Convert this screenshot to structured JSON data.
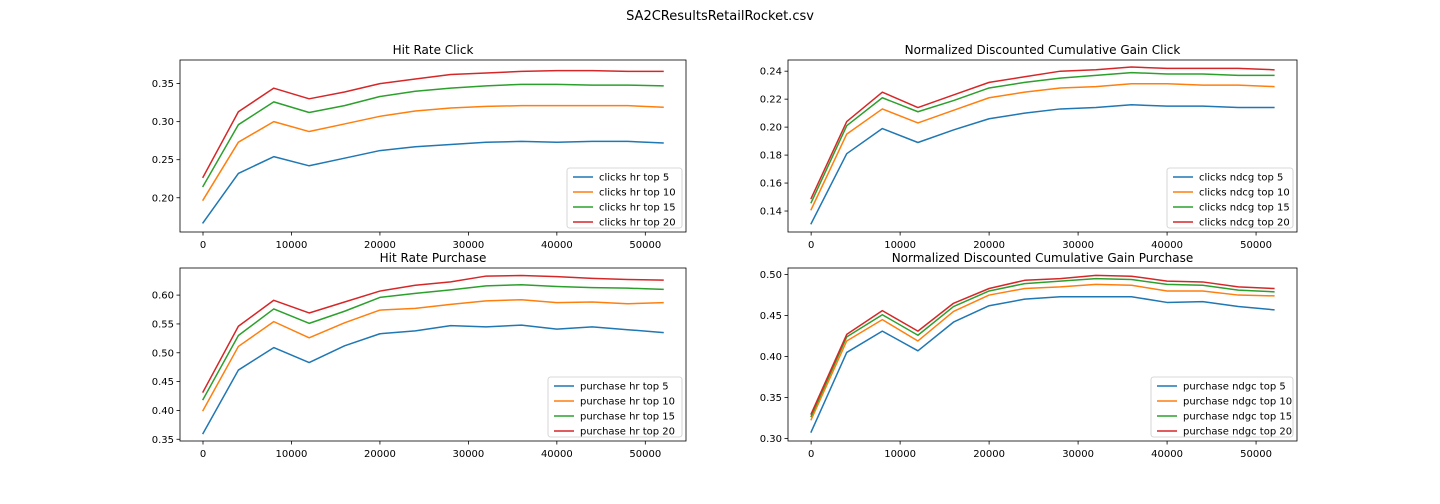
{
  "figure": {
    "suptitle": "SA2CResultsRetailRocket.csv"
  },
  "colors": [
    "#1f77b4",
    "#ff7f0e",
    "#2ca02c",
    "#d62728"
  ],
  "chart_data": [
    {
      "type": "line",
      "title": "Hit Rate Click",
      "xlabel": "",
      "ylabel": "",
      "x": [
        0,
        4000,
        8000,
        12000,
        16000,
        20000,
        24000,
        28000,
        32000,
        36000,
        40000,
        44000,
        48000,
        52000
      ],
      "xlim": [
        -2600,
        54600
      ],
      "ylim": [
        0.155,
        0.381
      ],
      "xticks": [
        0,
        10000,
        20000,
        30000,
        40000,
        50000
      ],
      "yticks": [
        0.2,
        0.25,
        0.3,
        0.35
      ],
      "ytick_labels": [
        "0.20",
        "0.25",
        "0.30",
        "0.35"
      ],
      "legend_position": "lower right",
      "series": [
        {
          "name": "clicks hr top 5",
          "values": [
            0.167,
            0.232,
            0.254,
            0.242,
            0.252,
            0.262,
            0.267,
            0.27,
            0.273,
            0.274,
            0.273,
            0.274,
            0.274,
            0.272
          ]
        },
        {
          "name": "clicks hr top 10",
          "values": [
            0.197,
            0.273,
            0.3,
            0.287,
            0.297,
            0.307,
            0.314,
            0.318,
            0.32,
            0.321,
            0.321,
            0.321,
            0.321,
            0.319
          ]
        },
        {
          "name": "clicks hr top 15",
          "values": [
            0.215,
            0.296,
            0.326,
            0.312,
            0.321,
            0.333,
            0.34,
            0.344,
            0.347,
            0.349,
            0.349,
            0.348,
            0.348,
            0.347
          ]
        },
        {
          "name": "clicks hr top 20",
          "values": [
            0.227,
            0.313,
            0.344,
            0.33,
            0.339,
            0.35,
            0.356,
            0.362,
            0.364,
            0.366,
            0.367,
            0.367,
            0.366,
            0.366
          ]
        }
      ]
    },
    {
      "type": "line",
      "title": "Normalized Discounted Cumulative Gain Click",
      "xlabel": "",
      "ylabel": "",
      "x": [
        0,
        4000,
        8000,
        12000,
        16000,
        20000,
        24000,
        28000,
        32000,
        36000,
        40000,
        44000,
        48000,
        52000
      ],
      "xlim": [
        -2600,
        54600
      ],
      "ylim": [
        0.125,
        0.248
      ],
      "xticks": [
        0,
        10000,
        20000,
        30000,
        40000,
        50000
      ],
      "yticks": [
        0.14,
        0.16,
        0.18,
        0.2,
        0.22,
        0.24
      ],
      "ytick_labels": [
        "0.14",
        "0.16",
        "0.18",
        "0.20",
        "0.22",
        "0.24"
      ],
      "legend_position": "lower right",
      "series": [
        {
          "name": "clicks ndcg top 5",
          "values": [
            0.131,
            0.181,
            0.199,
            0.189,
            0.198,
            0.206,
            0.21,
            0.213,
            0.214,
            0.216,
            0.215,
            0.215,
            0.214,
            0.214
          ]
        },
        {
          "name": "clicks ndcg top 10",
          "values": [
            0.141,
            0.195,
            0.213,
            0.203,
            0.212,
            0.221,
            0.225,
            0.228,
            0.229,
            0.231,
            0.231,
            0.23,
            0.23,
            0.229
          ]
        },
        {
          "name": "clicks ndcg top 15",
          "values": [
            0.146,
            0.201,
            0.221,
            0.211,
            0.219,
            0.228,
            0.232,
            0.235,
            0.237,
            0.239,
            0.238,
            0.238,
            0.237,
            0.237
          ]
        },
        {
          "name": "clicks ndcg top 20",
          "values": [
            0.149,
            0.204,
            0.225,
            0.214,
            0.223,
            0.232,
            0.236,
            0.24,
            0.241,
            0.243,
            0.242,
            0.242,
            0.242,
            0.241
          ]
        }
      ]
    },
    {
      "type": "line",
      "title": "Hit Rate Purchase",
      "xlabel": "",
      "ylabel": "",
      "x": [
        0,
        4000,
        8000,
        12000,
        16000,
        20000,
        24000,
        28000,
        32000,
        36000,
        40000,
        44000,
        48000,
        52000
      ],
      "xlim": [
        -2600,
        54600
      ],
      "ylim": [
        0.347,
        0.647
      ],
      "xticks": [
        0,
        10000,
        20000,
        30000,
        40000,
        50000
      ],
      "yticks": [
        0.35,
        0.4,
        0.45,
        0.5,
        0.55,
        0.6
      ],
      "ytick_labels": [
        "0.35",
        "0.40",
        "0.45",
        "0.50",
        "0.55",
        "0.60"
      ],
      "legend_position": "lower right",
      "series": [
        {
          "name": "purchase hr top 5",
          "values": [
            0.36,
            0.47,
            0.509,
            0.483,
            0.512,
            0.533,
            0.538,
            0.547,
            0.545,
            0.548,
            0.541,
            0.545,
            0.54,
            0.535
          ]
        },
        {
          "name": "purchase hr top 10",
          "values": [
            0.4,
            0.511,
            0.554,
            0.526,
            0.552,
            0.574,
            0.577,
            0.584,
            0.59,
            0.592,
            0.587,
            0.588,
            0.585,
            0.587
          ]
        },
        {
          "name": "purchase hr top 15",
          "values": [
            0.419,
            0.53,
            0.576,
            0.551,
            0.572,
            0.596,
            0.603,
            0.609,
            0.616,
            0.618,
            0.615,
            0.613,
            0.612,
            0.61
          ]
        },
        {
          "name": "purchase hr top 20",
          "values": [
            0.432,
            0.546,
            0.591,
            0.569,
            0.588,
            0.607,
            0.617,
            0.623,
            0.633,
            0.634,
            0.632,
            0.629,
            0.627,
            0.626
          ]
        }
      ]
    },
    {
      "type": "line",
      "title": "Normalized Discounted Cumulative Gain Purchase",
      "xlabel": "",
      "ylabel": "",
      "x": [
        0,
        4000,
        8000,
        12000,
        16000,
        20000,
        24000,
        28000,
        32000,
        36000,
        40000,
        44000,
        48000,
        52000
      ],
      "xlim": [
        -2600,
        54600
      ],
      "ylim": [
        0.297,
        0.508
      ],
      "xticks": [
        0,
        10000,
        20000,
        30000,
        40000,
        50000
      ],
      "yticks": [
        0.3,
        0.35,
        0.4,
        0.45,
        0.5
      ],
      "ytick_labels": [
        "0.30",
        "0.35",
        "0.40",
        "0.45",
        "0.50"
      ],
      "legend_position": "lower right",
      "series": [
        {
          "name": "purchase ndgc top 5",
          "values": [
            0.308,
            0.405,
            0.431,
            0.407,
            0.442,
            0.462,
            0.47,
            0.473,
            0.473,
            0.473,
            0.466,
            0.467,
            0.461,
            0.457
          ]
        },
        {
          "name": "purchase ndgc top 10",
          "values": [
            0.323,
            0.419,
            0.445,
            0.419,
            0.455,
            0.475,
            0.483,
            0.485,
            0.488,
            0.487,
            0.48,
            0.48,
            0.475,
            0.474
          ]
        },
        {
          "name": "purchase ndgc top 15",
          "values": [
            0.327,
            0.424,
            0.451,
            0.426,
            0.461,
            0.48,
            0.489,
            0.492,
            0.495,
            0.494,
            0.488,
            0.487,
            0.481,
            0.479
          ]
        },
        {
          "name": "purchase ndgc top 20",
          "values": [
            0.33,
            0.427,
            0.456,
            0.431,
            0.465,
            0.483,
            0.493,
            0.495,
            0.499,
            0.498,
            0.492,
            0.491,
            0.485,
            0.483
          ]
        }
      ]
    }
  ]
}
